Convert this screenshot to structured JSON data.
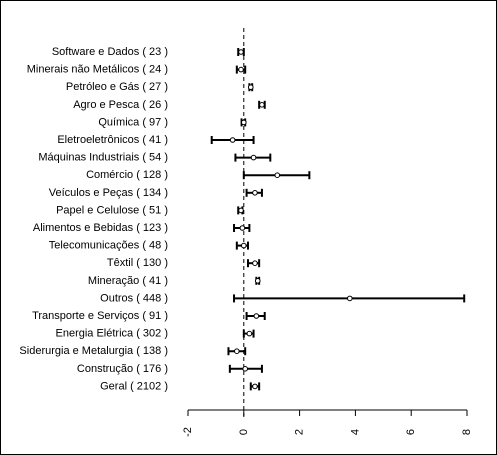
{
  "chart_data": {
    "type": "scatter",
    "variant": "forest-plot-with-confidence-intervals",
    "title": "",
    "xlabel": "",
    "ylabel": "",
    "xlim": [
      -2,
      8
    ],
    "x_ticks": [
      -2,
      0,
      2,
      4,
      6,
      8
    ],
    "x_tick_labels": [
      "-2",
      "0",
      "2",
      "4",
      "6",
      "8"
    ],
    "x_tick_label_rotation": "vertical",
    "reference_line": {
      "x": 0,
      "style": "dashed"
    },
    "point_marker": "open-circle",
    "categories": [
      "Software e Dados ( 23 )",
      "Minerais não Metálicos ( 24 )",
      "Petróleo e Gás ( 27 )",
      "Agro e Pesca ( 26 )",
      "Química ( 97 )",
      "Eletroeletrônicos ( 41 )",
      "Máquinas Industriais ( 54 )",
      "Comércio ( 128 )",
      "Veículos e Peças ( 134 )",
      "Papel e Celulose ( 51 )",
      "Alimentos e Bebidas ( 123 )",
      "Telecomunicações ( 48 )",
      "Têxtil ( 130 )",
      "Mineração ( 41 )",
      "Outros ( 448 )",
      "Transporte e Serviços ( 91 )",
      "Energia Elétrica ( 302 )",
      "Siderurgia e Metalurgia ( 138 )",
      "Construção ( 176 )",
      "Geral ( 2102 )"
    ],
    "estimates": [
      -0.1,
      -0.1,
      0.25,
      0.65,
      0.0,
      -0.4,
      0.35,
      1.2,
      0.4,
      -0.1,
      -0.05,
      0.0,
      0.4,
      0.5,
      3.8,
      0.45,
      0.2,
      -0.25,
      0.05,
      0.4
    ],
    "ci_lower": [
      -0.2,
      -0.25,
      0.2,
      0.55,
      -0.08,
      -1.15,
      -0.3,
      0.0,
      0.1,
      -0.2,
      -0.35,
      -0.25,
      0.15,
      0.45,
      -0.35,
      0.1,
      0.0,
      -0.55,
      -0.5,
      0.25
    ],
    "ci_upper": [
      0.0,
      0.05,
      0.3,
      0.75,
      0.05,
      0.35,
      0.95,
      2.35,
      0.65,
      -0.05,
      0.2,
      0.15,
      0.55,
      0.55,
      7.9,
      0.75,
      0.35,
      0.05,
      0.65,
      0.55
    ]
  }
}
